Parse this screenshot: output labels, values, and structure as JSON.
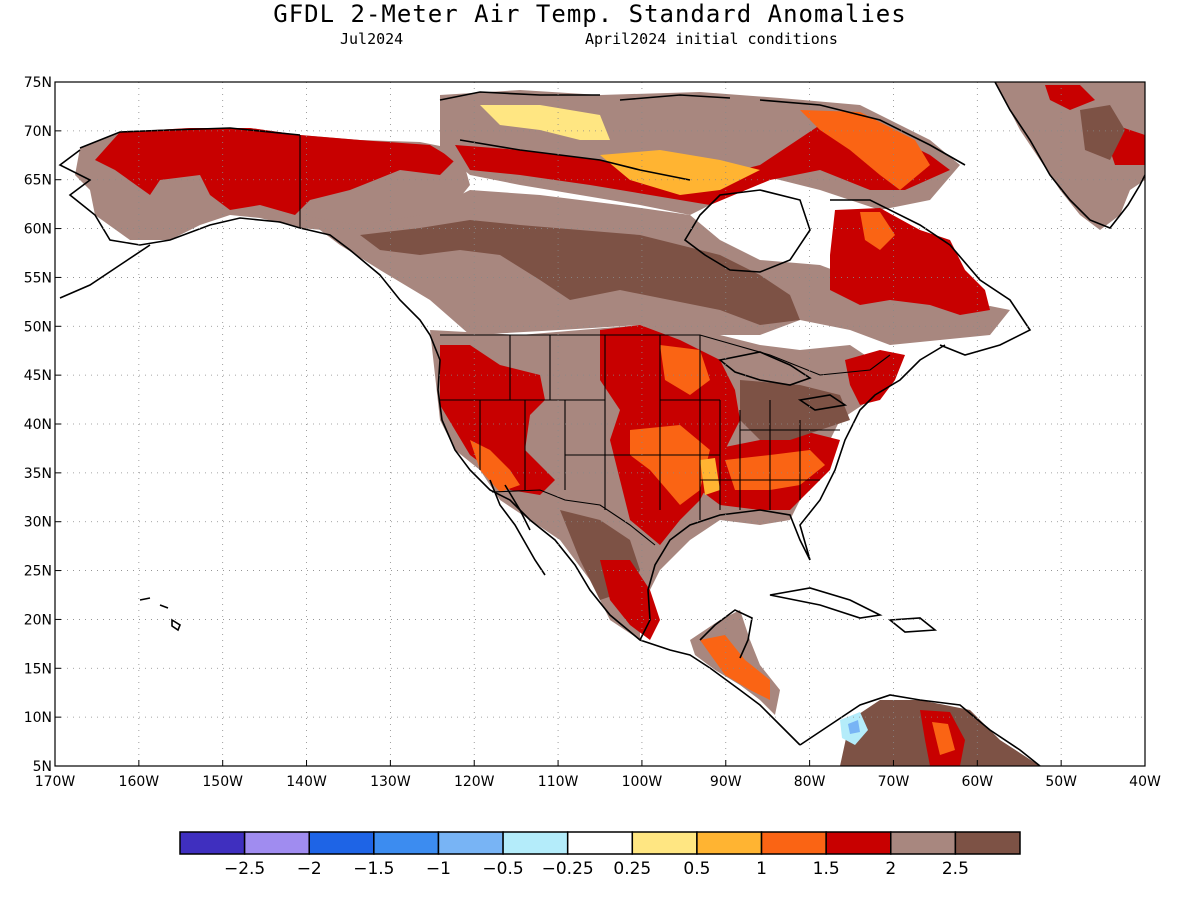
{
  "title": "GFDL 2-Meter Air Temp. Standard Anomalies",
  "subtitle_left": "Jul2024",
  "subtitle_right": "April2024 initial conditions",
  "map": {
    "lon_range": [
      -170,
      -40
    ],
    "lat_range": [
      5,
      75
    ],
    "grid": true,
    "y_ticks": [
      "75N",
      "70N",
      "65N",
      "60N",
      "55N",
      "50N",
      "45N",
      "40N",
      "35N",
      "30N",
      "25N",
      "20N",
      "15N",
      "10N",
      "5N"
    ],
    "x_ticks": [
      "170W",
      "160W",
      "150W",
      "140W",
      "130W",
      "120W",
      "110W",
      "100W",
      "90W",
      "80W",
      "70W",
      "60W",
      "50W",
      "40W"
    ]
  },
  "colorbar": {
    "colors": [
      "#3f2fbf",
      "#a08cf0",
      "#1e64e6",
      "#3c8cf0",
      "#78b4f5",
      "#b4ecfa",
      "#ffffff",
      "#ffe682",
      "#ffb432",
      "#fa6414",
      "#c80000",
      "#a8877f",
      "#7d5245"
    ],
    "labels": [
      "-2.5",
      "-2",
      "-1.5",
      "-1",
      "-0.5",
      "-0.25",
      "0.25",
      "0.5",
      "1",
      "1.5",
      "2",
      "2.5"
    ]
  },
  "colors": {
    "brown_light": "#a8877f",
    "brown_dark": "#7d5245",
    "red": "#c80000",
    "orange": "#fa6414",
    "light_orange": "#ffb432",
    "yellow": "#ffe682",
    "light_blue": "#b4ecfa",
    "blue": "#78b4f5"
  }
}
